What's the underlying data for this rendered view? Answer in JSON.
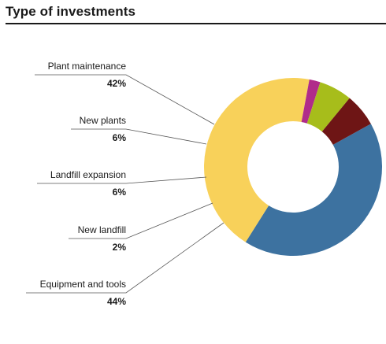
{
  "title": "Type of investments",
  "chart_data": {
    "type": "pie",
    "variant": "donut",
    "title": "Type of investments",
    "slices": [
      {
        "label": "Plant maintenance",
        "value": 42,
        "display": "42%",
        "color": "#3d72a0"
      },
      {
        "label": "Equipment and tools",
        "value": 44,
        "display": "44%",
        "color": "#f8d15a"
      },
      {
        "label": "New landfill",
        "value": 2,
        "display": "2%",
        "color": "#b02c8a"
      },
      {
        "label": "Landfill expansion",
        "value": 6,
        "display": "6%",
        "color": "#a7bd1b"
      },
      {
        "label": "New plants",
        "value": 6,
        "display": "6%",
        "color": "#6e1515"
      }
    ],
    "legend_placement": "left"
  }
}
